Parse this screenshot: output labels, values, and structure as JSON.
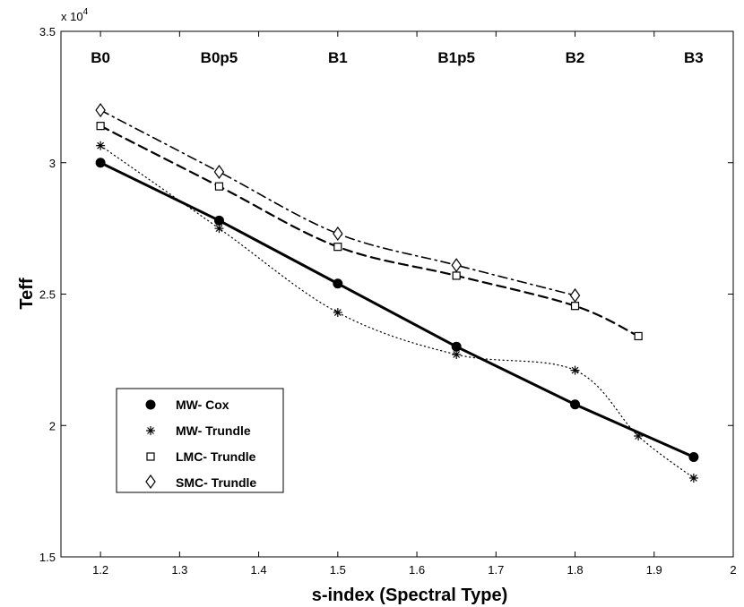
{
  "chart_data": {
    "type": "line",
    "title": "",
    "xlabel": "s-index (Spectral Type)",
    "ylabel": "Teff",
    "xlim": [
      1.15,
      2.0
    ],
    "ylim": [
      15000,
      35000
    ],
    "x_ticks": [
      1.2,
      1.3,
      1.4,
      1.5,
      1.6,
      1.7,
      1.8,
      1.9,
      2.0
    ],
    "x_tick_labels": [
      "1.2",
      "1.3",
      "1.4",
      "1.5",
      "1.6",
      "1.7",
      "1.8",
      "1.9",
      "2"
    ],
    "y_ticks": [
      15000,
      20000,
      25000,
      30000,
      35000
    ],
    "y_tick_labels": [
      "1.5",
      "2",
      "2.5",
      "3",
      "3.5"
    ],
    "y_exponent_label": "x 10",
    "y_exponent_power": "4",
    "spectral_types": [
      {
        "label": "B0",
        "x": 1.2
      },
      {
        "label": "B0p5",
        "x": 1.35
      },
      {
        "label": "B1",
        "x": 1.5
      },
      {
        "label": "B1p5",
        "x": 1.65
      },
      {
        "label": "B2",
        "x": 1.8
      },
      {
        "label": "B3",
        "x": 1.95
      }
    ],
    "series": [
      {
        "name": "MW- Cox",
        "marker": "filled-circle",
        "line": "solid",
        "x": [
          1.2,
          1.35,
          1.5,
          1.65,
          1.8,
          1.95
        ],
        "values": [
          30000,
          27800,
          25400,
          23000,
          20800,
          18800
        ]
      },
      {
        "name": "MW- Trundle",
        "marker": "asterisk",
        "line": "dotted",
        "x": [
          1.2,
          1.35,
          1.5,
          1.65,
          1.8,
          1.88,
          1.95
        ],
        "values": [
          30650,
          27500,
          24300,
          22700,
          22100,
          19600,
          18000
        ]
      },
      {
        "name": "LMC- Trundle",
        "marker": "square",
        "line": "dashed",
        "x": [
          1.2,
          1.35,
          1.5,
          1.65,
          1.8,
          1.88
        ],
        "values": [
          31400,
          29100,
          26800,
          25700,
          24550,
          23400
        ]
      },
      {
        "name": "SMC- Trundle",
        "marker": "diamond",
        "line": "dash-dot",
        "x": [
          1.2,
          1.35,
          1.5,
          1.65,
          1.8
        ],
        "values": [
          32000,
          29650,
          27300,
          26100,
          24950
        ]
      }
    ],
    "legend_position": "lower-left"
  }
}
